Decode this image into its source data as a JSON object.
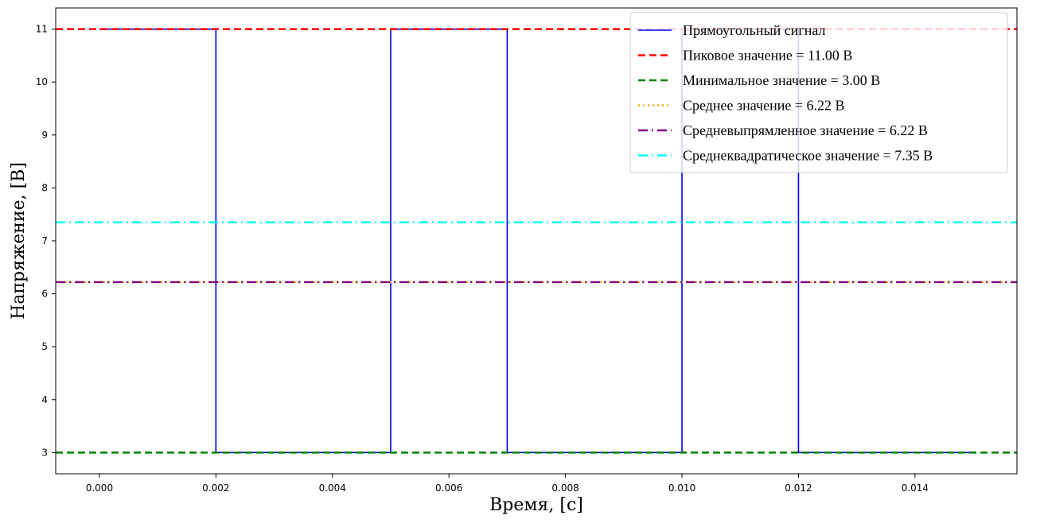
{
  "chart_data": {
    "type": "line",
    "xlabel": "Время, [c]",
    "ylabel": "Напряжение, [В]",
    "xlim": [
      -0.00075,
      0.01575
    ],
    "ylim": [
      2.6,
      11.4
    ],
    "xticks": [
      0.0,
      0.002,
      0.004,
      0.006,
      0.008,
      0.01,
      0.012,
      0.014
    ],
    "xtick_labels": [
      "0.000",
      "0.002",
      "0.004",
      "0.006",
      "0.008",
      "0.010",
      "0.012",
      "0.014"
    ],
    "yticks": [
      3,
      4,
      5,
      6,
      7,
      8,
      9,
      10,
      11
    ],
    "ytick_labels": [
      "3",
      "4",
      "5",
      "6",
      "7",
      "8",
      "9",
      "10",
      "11"
    ],
    "grid": false,
    "legend_position": "top-right",
    "signal": {
      "name": "Прямоугольный сигнал",
      "color": "#0000ff",
      "style": "solid",
      "x": [
        0.0,
        0.002,
        0.002,
        0.005,
        0.005,
        0.007,
        0.007,
        0.01,
        0.01,
        0.012,
        0.012,
        0.015
      ],
      "y": [
        11,
        11,
        3,
        3,
        11,
        11,
        3,
        3,
        11,
        11,
        3,
        3
      ]
    },
    "hlines": [
      {
        "name": "Пиковое значение = 11.00 В",
        "value": 11.0,
        "color": "#ff0000",
        "style": "dashed"
      },
      {
        "name": "Минимальное значение = 3.00 В",
        "value": 3.0,
        "color": "#008000",
        "style": "dashed"
      },
      {
        "name": "Среднее значение = 6.22 В",
        "value": 6.22,
        "color": "#ffa500",
        "style": "dotted"
      },
      {
        "name": "Средневыпрямленное значение = 6.22 В",
        "value": 6.22,
        "color": "#800080",
        "style": "dashdot"
      },
      {
        "name": "Среднеквадратическое значение = 7.35 В",
        "value": 7.35,
        "color": "#00ffff",
        "style": "dashdot"
      }
    ]
  }
}
